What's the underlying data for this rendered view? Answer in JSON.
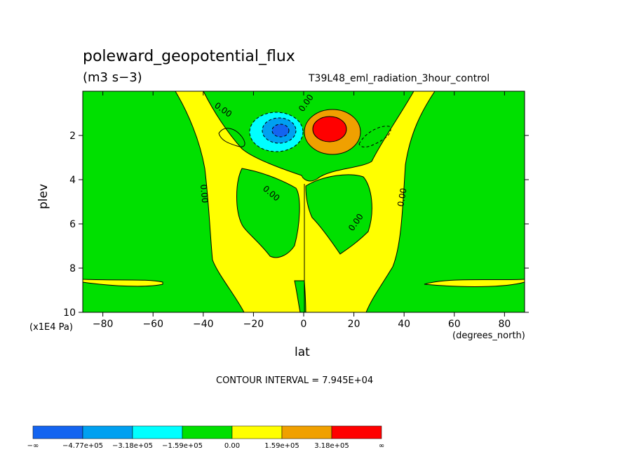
{
  "chart_data": {
    "type": "heatmap",
    "title": "poleward_geopotential_flux",
    "units": "(m3 s−3)",
    "dataset": "T39L48_eml_radiation_3hour_control",
    "xlabel": "lat",
    "x_units": "(degrees_north)",
    "ylabel": "plev",
    "y_units": "(x1E4 Pa)",
    "xlim": [
      -88,
      88
    ],
    "ylim": [
      10,
      0
    ],
    "x_ticks": [
      -80,
      -60,
      -40,
      -20,
      0,
      20,
      40,
      60,
      80
    ],
    "x_tick_labels": [
      "−80",
      "−60",
      "−40",
      "−20",
      "0",
      "20",
      "40",
      "60",
      "80"
    ],
    "y_ticks": [
      2,
      4,
      6,
      8,
      10
    ],
    "y_tick_labels": [
      "2",
      "4",
      "6",
      "8",
      "10"
    ],
    "contour_interval": "CONTOUR INTERVAL = 7.945E+04",
    "contour_labels": [
      "0.00",
      "0.00",
      "0.00",
      "0.00",
      "0.00",
      "0.00",
      "0.00"
    ],
    "colorbar": {
      "colors": [
        "#1464f0",
        "#00a0f0",
        "#00ffff",
        "#00e000",
        "#ffff00",
        "#f0a000",
        "#ff0000"
      ],
      "labels": [
        "−∞",
        "−4.77e+05",
        "−3.18e+05",
        "−1.59e+05",
        "0.00",
        "1.59e+05",
        "3.18e+05",
        "∞"
      ]
    },
    "features": [
      {
        "name": "negative core",
        "lat": -10,
        "plev": 1.8
      },
      {
        "name": "positive core",
        "lat": 9,
        "plev": 1.7
      }
    ]
  }
}
